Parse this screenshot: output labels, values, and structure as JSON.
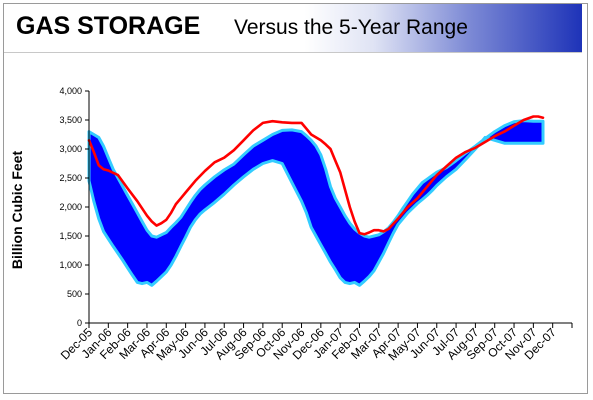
{
  "title": {
    "main": "GAS STORAGE",
    "sub": "Versus the 5-Year Range"
  },
  "chart_data": {
    "type": "area",
    "ylabel": "Billion Cubic Feet",
    "xlabel": "",
    "ylim": [
      0,
      4000
    ],
    "y_ticks": [
      0,
      500,
      1000,
      1500,
      2000,
      2500,
      3000,
      3500,
      4000
    ],
    "y_tick_labels": [
      "0",
      "500",
      "1,000",
      "1,500",
      "2,000",
      "2,500",
      "3,000",
      "3,500",
      "4,000"
    ],
    "categories": [
      "Dec-05",
      "Jan-06",
      "Feb-06",
      "Mar-06",
      "Apr-06",
      "May-06",
      "Jun-06",
      "Jul-06",
      "Aug-06",
      "Sep-06",
      "Oct-06",
      "Nov-06",
      "Dec-06",
      "Jan-07",
      "Feb-07",
      "Mar-07",
      "Apr-07",
      "May-07",
      "Jun-07",
      "Jul-07",
      "Aug-07",
      "Sep-07",
      "Oct-07",
      "Nov-07",
      "Dec-07"
    ],
    "grid": false,
    "legend": "none",
    "colors": {
      "range_fill": "#0000ff",
      "range_edge": "#33ccff",
      "storage_line": "#ff0000"
    },
    "range_x": [
      0,
      0.25,
      0.5,
      0.75,
      1,
      1.25,
      1.5,
      1.75,
      2,
      2.25,
      2.5,
      2.75,
      3,
      3.25,
      3.5,
      3.75,
      4,
      4.25,
      4.5,
      4.75,
      5,
      5.25,
      5.5,
      5.75,
      6,
      6.5,
      7,
      7.5,
      8,
      8.5,
      9,
      9.5,
      10,
      10.5,
      11,
      11.25,
      11.5,
      11.75,
      12,
      12.25,
      12.5,
      12.75,
      13,
      13.25,
      13.5,
      13.75,
      14,
      14.25,
      14.5,
      14.75,
      15,
      15.25,
      15.5,
      15.75,
      16,
      16.25,
      16.5,
      16.75,
      17,
      17.25,
      17.5,
      17.75,
      18,
      18.5,
      19,
      19.5,
      20,
      20.5,
      21,
      21.5,
      22,
      22.5,
      23,
      23.25,
      23.5
    ],
    "range_max": [
      3300,
      3250,
      3200,
      3050,
      2850,
      2650,
      2500,
      2350,
      2200,
      2050,
      1900,
      1750,
      1600,
      1500,
      1480,
      1520,
      1560,
      1650,
      1730,
      1820,
      1950,
      2080,
      2200,
      2300,
      2380,
      2520,
      2640,
      2740,
      2900,
      3050,
      3150,
      3250,
      3320,
      3330,
      3300,
      3230,
      3150,
      3050,
      2900,
      2650,
      2350,
      2150,
      2000,
      1850,
      1720,
      1620,
      1550,
      1500,
      1480,
      1500,
      1520,
      1570,
      1640,
      1740,
      1850,
      1980,
      2100,
      2220,
      2320,
      2420,
      2480,
      2540,
      2600,
      2680,
      2800,
      2930,
      3050,
      3180,
      3300,
      3400,
      3470,
      3490,
      3480,
      3480,
      3480
    ],
    "range_min": [
      2450,
      2100,
      1800,
      1580,
      1450,
      1320,
      1200,
      1080,
      950,
      820,
      700,
      680,
      700,
      650,
      720,
      800,
      880,
      1000,
      1150,
      1320,
      1480,
      1650,
      1780,
      1880,
      1950,
      2080,
      2220,
      2380,
      2520,
      2650,
      2750,
      2800,
      2750,
      2420,
      2100,
      1900,
      1650,
      1500,
      1350,
      1200,
      1050,
      920,
      780,
      700,
      680,
      700,
      650,
      720,
      800,
      900,
      1050,
      1200,
      1380,
      1550,
      1700,
      1800,
      1900,
      1980,
      2060,
      2130,
      2200,
      2280,
      2370,
      2520,
      2650,
      2820,
      3000,
      3200,
      3150,
      3100,
      3100,
      3100,
      3100,
      3100,
      3100
    ],
    "storage_x": [
      0,
      0.25,
      0.5,
      0.75,
      1,
      1.5,
      2,
      2.5,
      3,
      3.25,
      3.5,
      3.75,
      4,
      4.25,
      4.5,
      4.75,
      5,
      5.5,
      6,
      6.5,
      7,
      7.5,
      8,
      8.5,
      9,
      9.5,
      10,
      10.5,
      11,
      11.25,
      11.5,
      11.75,
      12,
      12.25,
      12.5,
      12.75,
      13,
      13.25,
      13.5,
      13.75,
      14,
      14.25,
      14.5,
      14.75,
      15,
      15.25,
      15.5,
      16,
      16.5,
      17,
      17.5,
      18,
      18.5,
      19,
      19.5,
      20,
      20.5,
      21,
      21.5,
      22,
      22.5,
      23,
      23.25,
      23.5
    ],
    "storage": [
      3150,
      2950,
      2720,
      2650,
      2630,
      2550,
      2320,
      2100,
      1850,
      1750,
      1680,
      1720,
      1780,
      1900,
      2050,
      2150,
      2250,
      2450,
      2620,
      2770,
      2850,
      2980,
      3150,
      3320,
      3450,
      3480,
      3460,
      3450,
      3450,
      3350,
      3250,
      3200,
      3150,
      3080,
      3000,
      2800,
      2600,
      2300,
      2000,
      1750,
      1550,
      1530,
      1560,
      1600,
      1600,
      1580,
      1620,
      1800,
      2000,
      2150,
      2350,
      2550,
      2700,
      2850,
      2950,
      3020,
      3120,
      3220,
      3300,
      3400,
      3500,
      3560,
      3560,
      3540
    ]
  }
}
